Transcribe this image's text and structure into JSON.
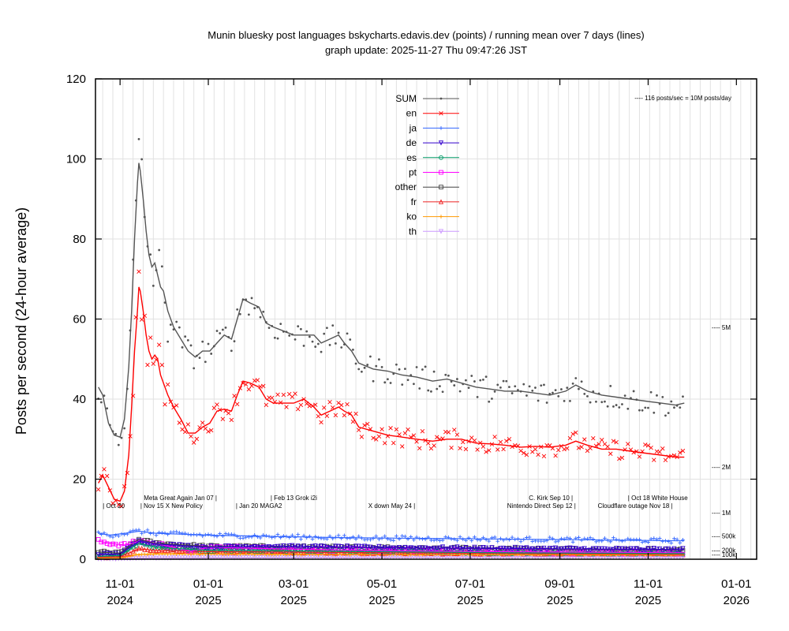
{
  "chart_data": {
    "type": "line",
    "title": "Munin bluesky post languages  bskycharts.edavis.dev (points) / running mean over 7 days (lines)",
    "subtitle": "graph update: 2025-11-27 Thu 09:47:26 JST",
    "ylabel": "Posts per second (24-hour average)",
    "xlabel": "",
    "ylim": [
      0,
      120
    ],
    "xlim": [
      "2024-10-15",
      "2026-01-15"
    ],
    "x_ticks": [
      {
        "date": "2024-11-01",
        "month": "11-01",
        "year": "2024"
      },
      {
        "date": "2025-01-01",
        "month": "01-01",
        "year": "2025"
      },
      {
        "date": "2025-03-01",
        "month": "03-01",
        "year": "2025"
      },
      {
        "date": "2025-05-01",
        "month": "05-01",
        "year": "2025"
      },
      {
        "date": "2025-07-01",
        "month": "07-01",
        "year": "2025"
      },
      {
        "date": "2025-09-01",
        "month": "09-01",
        "year": "2025"
      },
      {
        "date": "2025-11-01",
        "month": "11-01",
        "year": "2025"
      },
      {
        "date": "2026-01-01",
        "month": "01-01",
        "year": "2026"
      }
    ],
    "y_ticks": [
      0,
      20,
      40,
      60,
      80,
      100,
      120
    ],
    "grid": true,
    "legend_position": "top-center",
    "right_labels": [
      {
        "value": 116,
        "label": "---- 116 posts/sec = 10M posts/day",
        "position": "top-right"
      },
      {
        "value": 57.9,
        "label": "---- 5M"
      },
      {
        "value": 23.1,
        "label": "---- 2M"
      },
      {
        "value": 11.6,
        "label": "---- 1M"
      },
      {
        "value": 5.8,
        "label": "---- 500k"
      },
      {
        "value": 2.3,
        "label": "---- 200k"
      },
      {
        "value": 1.2,
        "label": "---- 100k"
      }
    ],
    "annotations": [
      {
        "date": "2024-10-20",
        "y": 12.8,
        "text": "| Oct 20"
      },
      {
        "date": "2024-11-15",
        "y": 12.8,
        "text": "| Nov 15 X New Policy"
      },
      {
        "date": "2025-01-07",
        "y": 14.8,
        "text": "Meta Great Again Jan 07 |",
        "anchor": "end"
      },
      {
        "date": "2025-01-20",
        "y": 12.8,
        "text": "| Jan 20 MAGA2"
      },
      {
        "date": "2025-02-13",
        "y": 14.8,
        "text": "| Feb 13 Grok i2i"
      },
      {
        "date": "2025-05-24",
        "y": 12.8,
        "text": "X down May 24 |",
        "anchor": "end"
      },
      {
        "date": "2025-09-10",
        "y": 14.8,
        "text": "C. Kirk Sep 10 |",
        "anchor": "end"
      },
      {
        "date": "2025-09-12",
        "y": 12.8,
        "text": "Nintendo Direct Sep 12 |",
        "anchor": "end"
      },
      {
        "date": "2025-10-18",
        "y": 14.8,
        "text": "| Oct 18 White House"
      },
      {
        "date": "2025-11-18",
        "y": 12.8,
        "text": "Cloudflare outage Nov 18 |",
        "anchor": "end"
      }
    ],
    "series": [
      {
        "name": "SUM",
        "color": "#555555",
        "marker": "dot",
        "points": [
          [
            "2024-10-17",
            43
          ],
          [
            "2024-10-20",
            41
          ],
          [
            "2024-10-24",
            34
          ],
          [
            "2024-10-28",
            31
          ],
          [
            "2024-11-01",
            30.5
          ],
          [
            "2024-11-04",
            35
          ],
          [
            "2024-11-07",
            48
          ],
          [
            "2024-11-09",
            62
          ],
          [
            "2024-11-11",
            80
          ],
          [
            "2024-11-13",
            94
          ],
          [
            "2024-11-14",
            99
          ],
          [
            "2024-11-15",
            97
          ],
          [
            "2024-11-17",
            90
          ],
          [
            "2024-11-19",
            82
          ],
          [
            "2024-11-21",
            76
          ],
          [
            "2024-11-23",
            73
          ],
          [
            "2024-11-25",
            74
          ],
          [
            "2024-11-27",
            71
          ],
          [
            "2024-11-29",
            68
          ],
          [
            "2024-12-01",
            67
          ],
          [
            "2024-12-04",
            62
          ],
          [
            "2024-12-08",
            58
          ],
          [
            "2024-12-13",
            55
          ],
          [
            "2024-12-18",
            52
          ],
          [
            "2024-12-23",
            50.5
          ],
          [
            "2024-12-28",
            52
          ],
          [
            "2025-01-02",
            52
          ],
          [
            "2025-01-07",
            54
          ],
          [
            "2025-01-12",
            56
          ],
          [
            "2025-01-17",
            55
          ],
          [
            "2025-01-21",
            60
          ],
          [
            "2025-01-25",
            65
          ],
          [
            "2025-01-30",
            64
          ],
          [
            "2025-02-05",
            63
          ],
          [
            "2025-02-10",
            59
          ],
          [
            "2025-02-15",
            58
          ],
          [
            "2025-02-22",
            57
          ],
          [
            "2025-03-01",
            56
          ],
          [
            "2025-03-08",
            56
          ],
          [
            "2025-03-15",
            56
          ],
          [
            "2025-03-20",
            54
          ],
          [
            "2025-03-26",
            55
          ],
          [
            "2025-04-01",
            56
          ],
          [
            "2025-04-05",
            54
          ],
          [
            "2025-04-10",
            52
          ],
          [
            "2025-04-15",
            49
          ],
          [
            "2025-04-25",
            47.5
          ],
          [
            "2025-05-05",
            47
          ],
          [
            "2025-05-15",
            46
          ],
          [
            "2025-05-25",
            45.5
          ],
          [
            "2025-06-05",
            44.5
          ],
          [
            "2025-06-15",
            45
          ],
          [
            "2025-06-25",
            44
          ],
          [
            "2025-07-05",
            43
          ],
          [
            "2025-07-15",
            42.5
          ],
          [
            "2025-07-25",
            42
          ],
          [
            "2025-08-05",
            42
          ],
          [
            "2025-08-15",
            41.5
          ],
          [
            "2025-08-25",
            41
          ],
          [
            "2025-09-05",
            42
          ],
          [
            "2025-09-12",
            43.5
          ],
          [
            "2025-09-20",
            42
          ],
          [
            "2025-09-30",
            41
          ],
          [
            "2025-10-10",
            40.5
          ],
          [
            "2025-10-20",
            40
          ],
          [
            "2025-10-30",
            39.5
          ],
          [
            "2025-11-10",
            39
          ],
          [
            "2025-11-20",
            38.5
          ],
          [
            "2025-11-26",
            39
          ]
        ]
      },
      {
        "name": "en",
        "color": "#ff0000",
        "marker": "x",
        "points": [
          [
            "2024-10-17",
            19
          ],
          [
            "2024-10-20",
            21
          ],
          [
            "2024-10-24",
            18
          ],
          [
            "2024-10-28",
            15
          ],
          [
            "2024-11-01",
            14.5
          ],
          [
            "2024-11-04",
            17
          ],
          [
            "2024-11-07",
            26
          ],
          [
            "2024-11-09",
            38
          ],
          [
            "2024-11-11",
            52
          ],
          [
            "2024-11-13",
            62
          ],
          [
            "2024-11-14",
            68
          ],
          [
            "2024-11-15",
            67
          ],
          [
            "2024-11-17",
            62
          ],
          [
            "2024-11-19",
            56
          ],
          [
            "2024-11-21",
            52
          ],
          [
            "2024-11-23",
            50
          ],
          [
            "2024-11-25",
            51
          ],
          [
            "2024-11-27",
            50
          ],
          [
            "2024-11-29",
            46
          ],
          [
            "2024-12-01",
            44
          ],
          [
            "2024-12-04",
            41
          ],
          [
            "2024-12-08",
            38
          ],
          [
            "2024-12-13",
            35
          ],
          [
            "2024-12-18",
            31.5
          ],
          [
            "2024-12-23",
            31.5
          ],
          [
            "2024-12-28",
            33
          ],
          [
            "2025-01-02",
            34
          ],
          [
            "2025-01-07",
            37
          ],
          [
            "2025-01-12",
            37.5
          ],
          [
            "2025-01-17",
            37
          ],
          [
            "2025-01-21",
            41
          ],
          [
            "2025-01-25",
            44.5
          ],
          [
            "2025-01-30",
            44
          ],
          [
            "2025-02-05",
            43
          ],
          [
            "2025-02-10",
            40
          ],
          [
            "2025-02-15",
            39
          ],
          [
            "2025-02-22",
            39
          ],
          [
            "2025-03-01",
            39
          ],
          [
            "2025-03-08",
            40
          ],
          [
            "2025-03-15",
            38
          ],
          [
            "2025-03-20",
            36
          ],
          [
            "2025-03-26",
            37
          ],
          [
            "2025-04-01",
            38
          ],
          [
            "2025-04-05",
            37
          ],
          [
            "2025-04-10",
            36
          ],
          [
            "2025-04-15",
            33
          ],
          [
            "2025-04-25",
            32
          ],
          [
            "2025-05-05",
            31
          ],
          [
            "2025-05-15",
            30.5
          ],
          [
            "2025-05-25",
            30
          ],
          [
            "2025-06-05",
            29.5
          ],
          [
            "2025-06-15",
            30
          ],
          [
            "2025-06-25",
            30
          ],
          [
            "2025-07-05",
            29
          ],
          [
            "2025-07-15",
            28.8
          ],
          [
            "2025-07-25",
            28.5
          ],
          [
            "2025-08-05",
            28
          ],
          [
            "2025-08-15",
            28.2
          ],
          [
            "2025-08-25",
            28
          ],
          [
            "2025-09-05",
            28.5
          ],
          [
            "2025-09-12",
            29.5
          ],
          [
            "2025-09-20",
            28.5
          ],
          [
            "2025-09-30",
            27.5
          ],
          [
            "2025-10-10",
            27.5
          ],
          [
            "2025-10-20",
            27
          ],
          [
            "2025-10-30",
            26.5
          ],
          [
            "2025-11-10",
            26
          ],
          [
            "2025-11-20",
            25.5
          ],
          [
            "2025-11-26",
            25.5
          ]
        ]
      },
      {
        "name": "ja",
        "color": "#3366ff",
        "marker": "plus",
        "points": [
          [
            "2024-10-17",
            6.5
          ],
          [
            "2024-10-25",
            6
          ],
          [
            "2024-11-05",
            6.5
          ],
          [
            "2024-11-14",
            7
          ],
          [
            "2024-11-25",
            6.5
          ],
          [
            "2025-01-01",
            6
          ],
          [
            "2025-02-01",
            5.8
          ],
          [
            "2025-04-01",
            5.4
          ],
          [
            "2025-06-01",
            5.2
          ],
          [
            "2025-08-01",
            5
          ],
          [
            "2025-10-01",
            4.8
          ],
          [
            "2025-11-26",
            4.6
          ]
        ]
      },
      {
        "name": "de",
        "color": "#3300cc",
        "marker": "triangle-down",
        "points": [
          [
            "2024-10-17",
            1.2
          ],
          [
            "2024-11-01",
            1.3
          ],
          [
            "2024-11-14",
            4.5
          ],
          [
            "2024-11-25",
            3.8
          ],
          [
            "2025-01-01",
            3
          ],
          [
            "2025-02-01",
            3.2
          ],
          [
            "2025-04-01",
            3
          ],
          [
            "2025-06-01",
            2.8
          ],
          [
            "2025-09-01",
            2.6
          ],
          [
            "2025-11-26",
            2.4
          ]
        ]
      },
      {
        "name": "es",
        "color": "#009966",
        "marker": "circle",
        "points": [
          [
            "2024-10-17",
            0.7
          ],
          [
            "2024-11-01",
            0.9
          ],
          [
            "2024-11-14",
            4
          ],
          [
            "2024-11-25",
            3
          ],
          [
            "2025-01-01",
            2.2
          ],
          [
            "2025-04-01",
            2
          ],
          [
            "2025-08-01",
            1.6
          ],
          [
            "2025-11-26",
            1.4
          ]
        ]
      },
      {
        "name": "pt",
        "color": "#ff00ff",
        "marker": "square",
        "points": [
          [
            "2024-10-17",
            4.5
          ],
          [
            "2024-10-25",
            4
          ],
          [
            "2024-11-05",
            3.5
          ],
          [
            "2024-11-14",
            4.5
          ],
          [
            "2024-12-01",
            3.5
          ],
          [
            "2024-12-20",
            2
          ],
          [
            "2025-01-01",
            3
          ],
          [
            "2025-03-01",
            2.5
          ],
          [
            "2025-06-01",
            2
          ],
          [
            "2025-09-01",
            1.8
          ],
          [
            "2025-11-26",
            1.6
          ]
        ]
      },
      {
        "name": "other",
        "color": "#444444",
        "marker": "square",
        "points": [
          [
            "2024-10-17",
            1.8
          ],
          [
            "2024-11-01",
            1.5
          ],
          [
            "2024-11-14",
            5
          ],
          [
            "2024-11-25",
            4
          ],
          [
            "2025-01-01",
            3.2
          ],
          [
            "2025-04-01",
            3
          ],
          [
            "2025-08-01",
            2.6
          ],
          [
            "2025-11-26",
            2.3
          ]
        ]
      },
      {
        "name": "fr",
        "color": "#ee2222",
        "marker": "triangle-up",
        "points": [
          [
            "2024-10-17",
            0.5
          ],
          [
            "2024-11-01",
            0.6
          ],
          [
            "2024-11-14",
            2.6
          ],
          [
            "2024-11-25",
            2.2
          ],
          [
            "2025-01-01",
            1.9
          ],
          [
            "2025-04-01",
            1.7
          ],
          [
            "2025-08-01",
            1.4
          ],
          [
            "2025-11-26",
            1.2
          ]
        ]
      },
      {
        "name": "ko",
        "color": "#ff9900",
        "marker": "star",
        "points": [
          [
            "2024-10-17",
            0.3
          ],
          [
            "2024-11-01",
            0.3
          ],
          [
            "2024-11-14",
            1.2
          ],
          [
            "2024-11-25",
            1.3
          ],
          [
            "2025-01-01",
            1.3
          ],
          [
            "2025-04-01",
            1.2
          ],
          [
            "2025-08-01",
            1.1
          ],
          [
            "2025-11-26",
            1
          ]
        ]
      },
      {
        "name": "th",
        "color": "#cc99ff",
        "marker": "triangle-down",
        "points": [
          [
            "2024-10-17",
            0.1
          ],
          [
            "2024-11-01",
            0.1
          ],
          [
            "2024-11-14",
            0.3
          ],
          [
            "2025-01-01",
            0.4
          ],
          [
            "2025-04-01",
            0.5
          ],
          [
            "2025-08-01",
            0.6
          ],
          [
            "2025-11-26",
            0.6
          ]
        ]
      }
    ]
  }
}
